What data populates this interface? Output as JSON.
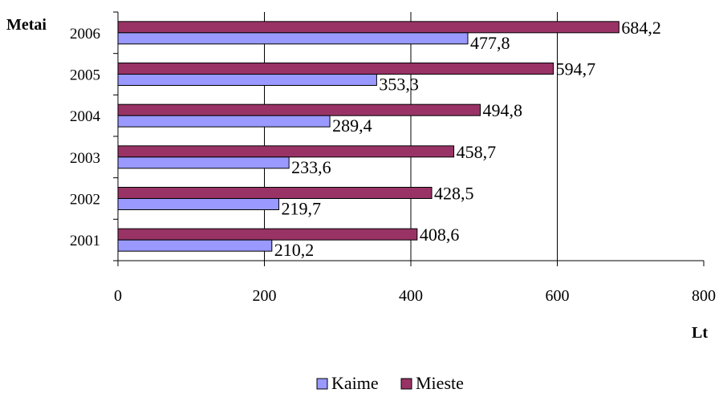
{
  "chart_data": {
    "type": "bar",
    "orientation": "horizontal",
    "categories": [
      "2001",
      "2002",
      "2003",
      "2004",
      "2005",
      "2006"
    ],
    "series": [
      {
        "name": "Kaime",
        "color": "#9999FF",
        "values": [
          210.2,
          219.7,
          233.6,
          289.4,
          353.3,
          477.8
        ],
        "labels": [
          "210,2",
          "219,7",
          "233,6",
          "289,4",
          "353,3",
          "477,8"
        ]
      },
      {
        "name": "Mieste",
        "color": "#993366",
        "values": [
          408.6,
          428.5,
          458.7,
          494.8,
          594.7,
          684.2
        ],
        "labels": [
          "408,6",
          "428,5",
          "458,7",
          "494,8",
          "594,7",
          "684,2"
        ]
      }
    ],
    "ylabel": "Metai",
    "xlabel": "Lt",
    "xlim": [
      0,
      800
    ],
    "xticks": [
      0,
      200,
      400,
      600,
      800
    ],
    "xtick_labels": [
      "0",
      "200",
      "400",
      "600",
      "800"
    ],
    "grid": "vertical",
    "legend": "bottom-center"
  }
}
